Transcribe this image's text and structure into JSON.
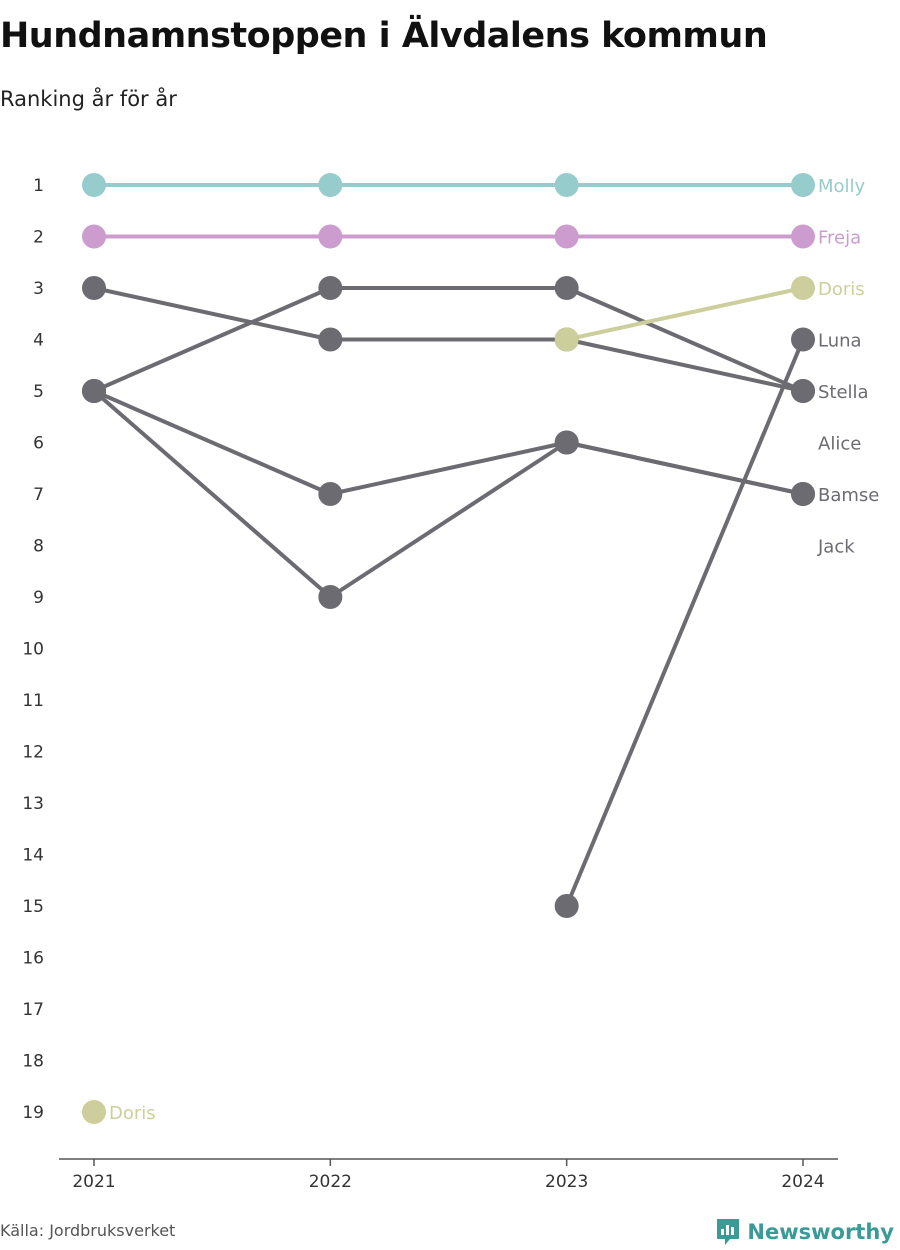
{
  "chart_data": {
    "type": "line",
    "title": "Hundnamnstoppen i Älvdalens kommun",
    "subtitle": "Ranking år för år",
    "source": "Källa: Jordbruksverket",
    "brand": "Newsworthy",
    "x": [
      "2021",
      "2022",
      "2023",
      "2024"
    ],
    "y_ticks": [
      1,
      2,
      3,
      4,
      5,
      6,
      7,
      8,
      9,
      10,
      11,
      12,
      13,
      14,
      15,
      16,
      17,
      18,
      19
    ],
    "ylim": [
      1,
      19
    ],
    "y_reversed": true,
    "grid": false,
    "series": [
      {
        "name": "Molly",
        "values": [
          1,
          1,
          1,
          1
        ],
        "color": "#97cccc",
        "highlight": true
      },
      {
        "name": "Freja",
        "values": [
          2,
          2,
          2,
          2
        ],
        "color": "#cc9ccf",
        "highlight": true
      },
      {
        "name": "Doris",
        "values": [
          19,
          null,
          4,
          3
        ],
        "color": "#cccf9b",
        "highlight": true
      },
      {
        "name": "Luna",
        "values": [
          null,
          null,
          15,
          4
        ],
        "color": "#6c6b72",
        "highlight": false
      },
      {
        "name": "Stella",
        "values": [
          3,
          4,
          4,
          5
        ],
        "color": "#6c6b72",
        "highlight": false
      },
      {
        "name": "Alice",
        "values": [
          5,
          3,
          3,
          5
        ],
        "color": "#6c6b72",
        "highlight": false
      },
      {
        "name": "Bamse",
        "values": [
          5,
          7,
          6,
          7
        ],
        "color": "#6c6b72",
        "highlight": false
      },
      {
        "name": "Jack",
        "values": [
          5,
          9,
          6,
          7
        ],
        "color": "#6c6b72",
        "highlight": false
      }
    ],
    "end_labels": [
      {
        "text": "Molly",
        "rank": 1,
        "color": "#97cccc"
      },
      {
        "text": "Freja",
        "rank": 2,
        "color": "#cc9ccf"
      },
      {
        "text": "Doris",
        "rank": 3,
        "color": "#cccf9b"
      },
      {
        "text": "Luna",
        "rank": 4,
        "color": "#6c6b72"
      },
      {
        "text": "Stella",
        "rank": 5,
        "color": "#6c6b72"
      },
      {
        "text": "Alice",
        "rank": 6,
        "color": "#6c6b72"
      },
      {
        "text": "Bamse",
        "rank": 7,
        "color": "#6c6b72"
      },
      {
        "text": "Jack",
        "rank": 8,
        "color": "#6c6b72"
      }
    ],
    "start_labels": [
      {
        "text": "Doris",
        "rank": 19,
        "color": "#cccf9b"
      }
    ]
  }
}
